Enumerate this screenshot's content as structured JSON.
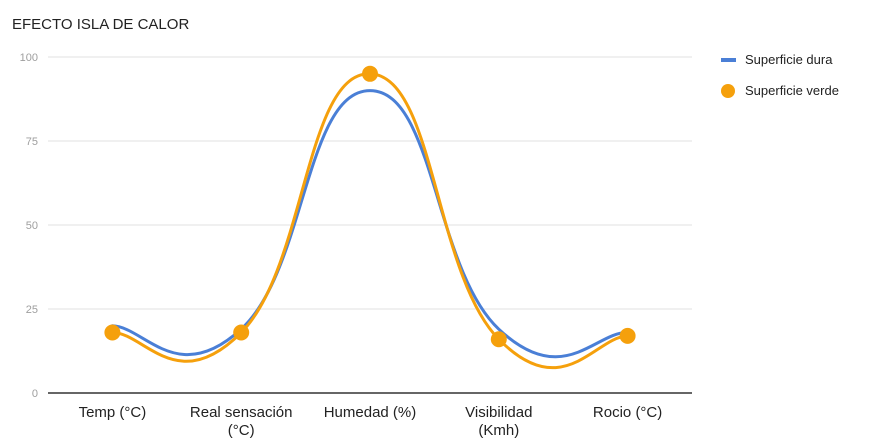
{
  "chart_data": {
    "type": "line",
    "title": "EFECTO ISLA DE CALOR",
    "categories": [
      "Temp (°C)",
      "Real sensación (°C)",
      "Humedad (%)",
      "Visibilidad (Kmh)",
      "Rocio (°C)"
    ],
    "series": [
      {
        "name": "Superficie dura",
        "values": [
          20,
          19,
          90,
          19,
          18
        ],
        "color": "#4a7fd6",
        "marker": "none"
      },
      {
        "name": "Superficie verde",
        "values": [
          18,
          18,
          95,
          16,
          17
        ],
        "color": "#f5a00c",
        "marker": "circle"
      }
    ],
    "yticks": [
      0,
      25,
      50,
      75,
      100
    ],
    "ylim": [
      0,
      100
    ],
    "xlabel": "",
    "ylabel": "",
    "grid": true,
    "smooth": true,
    "legend_position": "right"
  }
}
